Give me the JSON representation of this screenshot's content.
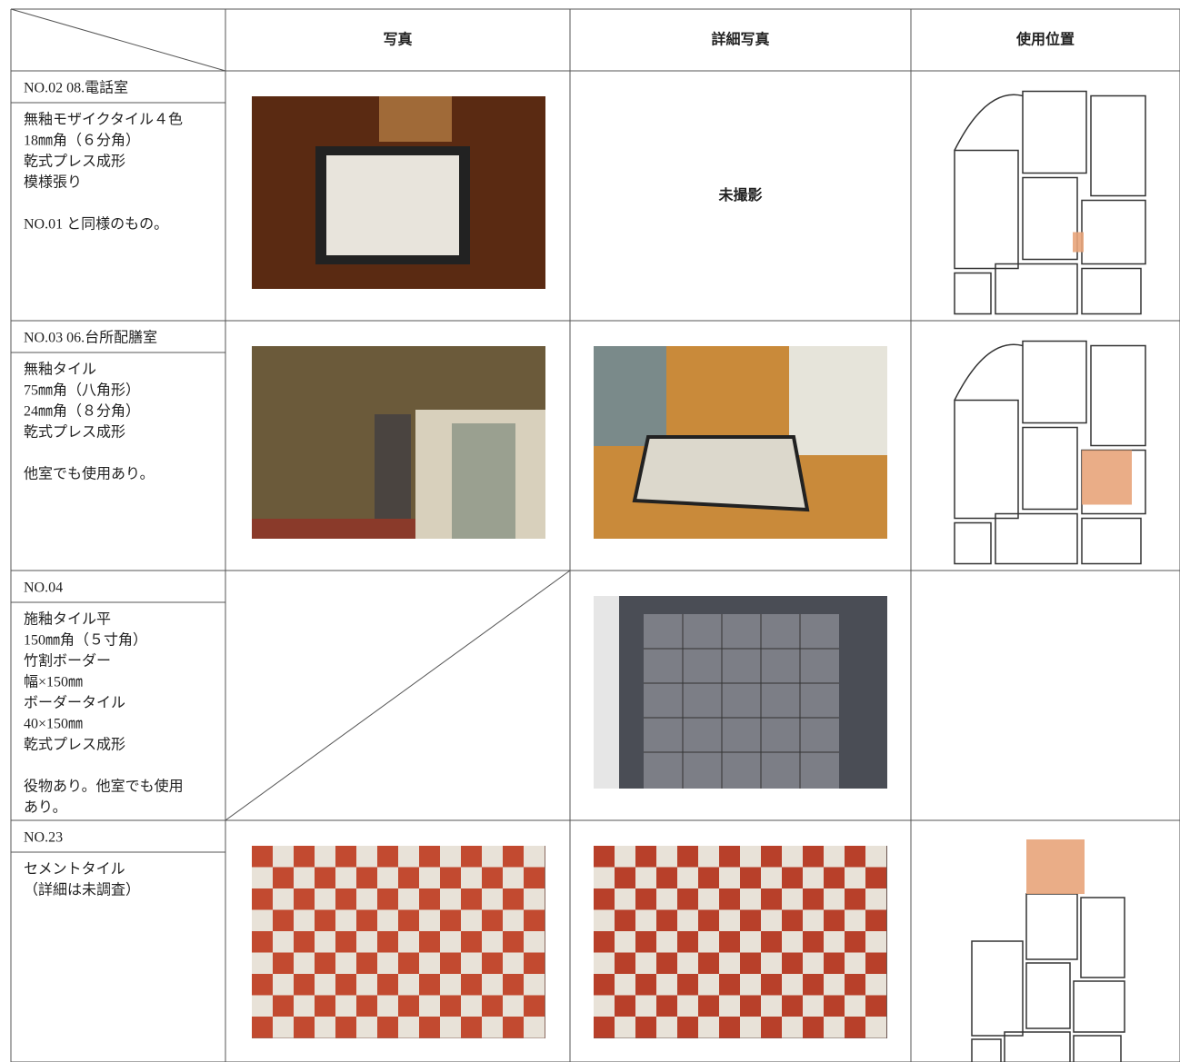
{
  "header": {
    "columns": [
      "写真",
      "詳細写真",
      "使用位置"
    ]
  },
  "rows": [
    {
      "id": "NO.02 08.電話室",
      "description": [
        [
          "無釉モザイクタイル４色",
          "18㎜角（６分角）",
          "乾式プレス成形",
          "模様張り"
        ],
        [
          "NO.01 と同様のもの。"
        ]
      ],
      "detail_text": "未撮影"
    },
    {
      "id": "NO.03 06.台所配膳室",
      "description": [
        [
          "無釉タイル",
          "75㎜角（八角形）",
          "24㎜角（８分角）",
          "乾式プレス成形"
        ],
        [
          "他室でも使用あり。"
        ]
      ]
    },
    {
      "id": "NO.04",
      "description": [
        [
          "施釉タイル平",
          "150㎜角（５寸角）",
          "竹割ボーダー",
          "幅×150㎜",
          "ボーダータイル",
          "40×150㎜",
          "乾式プレス成形"
        ],
        [
          "役物あり。他室でも使用",
          "あり。"
        ]
      ]
    },
    {
      "id": "NO.23",
      "description": [
        [
          "セメントタイル",
          "（詳細は未調査）"
        ]
      ]
    }
  ]
}
